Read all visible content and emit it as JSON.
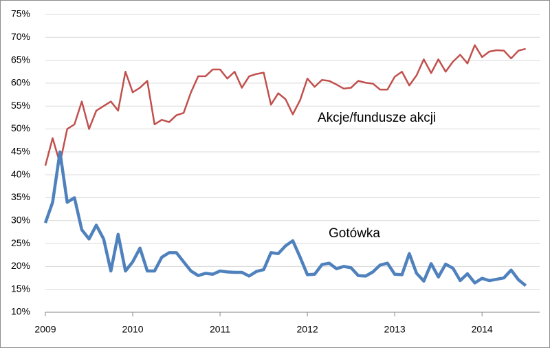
{
  "chart_data": {
    "type": "line",
    "x": [
      2009,
      2009.083,
      2009.167,
      2009.25,
      2009.333,
      2009.417,
      2009.5,
      2009.583,
      2009.667,
      2009.75,
      2009.833,
      2009.917,
      2010,
      2010.083,
      2010.167,
      2010.25,
      2010.333,
      2010.417,
      2010.5,
      2010.583,
      2010.667,
      2010.75,
      2010.833,
      2010.917,
      2011,
      2011.083,
      2011.167,
      2011.25,
      2011.333,
      2011.417,
      2011.5,
      2011.583,
      2011.667,
      2011.75,
      2011.833,
      2011.917,
      2012,
      2012.083,
      2012.167,
      2012.25,
      2012.333,
      2012.417,
      2012.5,
      2012.583,
      2012.667,
      2012.75,
      2012.833,
      2012.917,
      2013,
      2013.083,
      2013.167,
      2013.25,
      2013.333,
      2013.417,
      2013.5,
      2013.583,
      2013.667,
      2013.75,
      2013.833,
      2013.917,
      2014,
      2014.083,
      2014.167,
      2014.25,
      2014.333,
      2014.417,
      2014.5
    ],
    "series": [
      {
        "name": "Akcje/fundusze akcji",
        "color": "#c0504d",
        "values": [
          42,
          48,
          42.5,
          50,
          51,
          56,
          50,
          54,
          55,
          56,
          54,
          62.5,
          58,
          59,
          60.5,
          51,
          52,
          51.5,
          53,
          53.5,
          58,
          61.5,
          61.5,
          63,
          63,
          61,
          62.5,
          59,
          61.5,
          62,
          62.3,
          55.3,
          57.8,
          56.5,
          53.2,
          56.3,
          61,
          59.2,
          60.7,
          60.5,
          59.7,
          58.8,
          59,
          60.5,
          60.1,
          59.9,
          58.6,
          58.6,
          61.4,
          62.5,
          59.5,
          61.7,
          65.2,
          62.2,
          65.2,
          62.5,
          64.7,
          66.2,
          64.3,
          68.3,
          65.7,
          66.9,
          67.2,
          67.1,
          65.4,
          67.1,
          67.5
        ]
      },
      {
        "name": "Gotówka",
        "color": "#4f81bd",
        "values": [
          29.5,
          34,
          45,
          34,
          35,
          28,
          26,
          29,
          26,
          19,
          27,
          19,
          21,
          24,
          19,
          19,
          22,
          23,
          23,
          21,
          19,
          18,
          18.5,
          18.3,
          19,
          18.8,
          18.7,
          18.7,
          17.9,
          18.9,
          19.3,
          23,
          22.8,
          24.5,
          25.6,
          22,
          18.2,
          18.3,
          20.4,
          20.7,
          19.5,
          20,
          19.7,
          18,
          17.9,
          18.8,
          20.3,
          20.7,
          18.3,
          18.2,
          22.8,
          18.5,
          16.8,
          20.6,
          17.7,
          20.5,
          19.6,
          16.9,
          18.4,
          16.4,
          17.4,
          16.9,
          17.2,
          17.5,
          19.2,
          17.1,
          15.8
        ]
      }
    ],
    "xlim": [
      2009,
      2014.66
    ],
    "xticks": [
      2009,
      2010,
      2011,
      2012,
      2013,
      2014
    ],
    "ylim": [
      10,
      75
    ],
    "yticks": [
      {
        "value": 10,
        "label": "10%"
      },
      {
        "value": 15,
        "label": "15%"
      },
      {
        "value": 20,
        "label": "20%"
      },
      {
        "value": 25,
        "label": "25%"
      },
      {
        "value": 30,
        "label": "30%"
      },
      {
        "value": 35,
        "label": "35%"
      },
      {
        "value": 40,
        "label": "40%"
      },
      {
        "value": 45,
        "label": "45%"
      },
      {
        "value": 50,
        "label": "50%"
      },
      {
        "value": 55,
        "label": "55%"
      },
      {
        "value": 60,
        "label": "60%"
      },
      {
        "value": 65,
        "label": "65%"
      },
      {
        "value": 70,
        "label": "70%"
      },
      {
        "value": 75,
        "label": "75%"
      }
    ],
    "grid": true
  }
}
